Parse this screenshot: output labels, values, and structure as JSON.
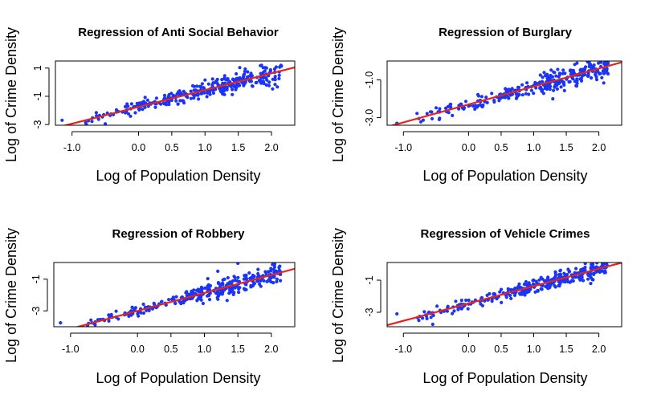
{
  "chart_data": [
    {
      "type": "scatter",
      "title": "Regression of Anti Social Behavior",
      "xlabel": "Log of Population Density",
      "ylabel": "Log of Crime Density",
      "xlim": [
        -1.25,
        2.35
      ],
      "ylim": [
        -3.05,
        1.5
      ],
      "xticks": [
        -1.0,
        0.0,
        0.5,
        1.0,
        1.5,
        2.0
      ],
      "xtick_labels": [
        "-1.0",
        "0.0",
        "0.5",
        "1.0",
        "1.5",
        "2.0"
      ],
      "yticks": [
        -3,
        -1,
        1
      ],
      "ytick_labels": [
        "-3",
        "-1",
        "1"
      ],
      "regression": {
        "slope": 1.19,
        "intercept": -1.75
      },
      "scatter_spread": 0.35,
      "outliers": [
        [
          -1.15,
          -2.7
        ],
        [
          -0.5,
          -2.95
        ],
        [
          1.0,
          0.15
        ],
        [
          1.85,
          1.2
        ]
      ],
      "point_count": 320,
      "point_color": "#1a35f5",
      "line_color": "#e8231a"
    },
    {
      "type": "scatter",
      "title": "Regression of Burglary",
      "xlabel": "Log of Population Density",
      "ylabel": "Log of Crime Density",
      "xlim": [
        -1.25,
        2.35
      ],
      "ylim": [
        -3.4,
        0.0
      ],
      "xticks": [
        -1.0,
        0.0,
        0.5,
        1.0,
        1.5,
        2.0
      ],
      "xtick_labels": [
        "-1.0",
        "0.0",
        "0.5",
        "1.0",
        "1.5",
        "2.0"
      ],
      "yticks": [
        -3.0,
        -1.0
      ],
      "ytick_labels": [
        "-3.0",
        "-1.0"
      ],
      "regression": {
        "slope": 0.95,
        "intercept": -2.3
      },
      "scatter_spread": 0.3,
      "outliers": [
        [
          -1.1,
          -3.3
        ],
        [
          -0.45,
          -3.1
        ],
        [
          1.85,
          -0.05
        ],
        [
          2.1,
          -0.5
        ]
      ],
      "point_count": 320,
      "point_color": "#1a35f5",
      "line_color": "#e8231a"
    },
    {
      "type": "scatter",
      "title": "Regression of Robbery",
      "xlabel": "Log of Population Density",
      "ylabel": "Log of Crime Density",
      "xlim": [
        -1.25,
        2.35
      ],
      "ylim": [
        -4.0,
        0.05
      ],
      "xticks": [
        -1.0,
        0.0,
        0.5,
        1.0,
        1.5,
        2.0
      ],
      "xtick_labels": [
        "-1.0",
        "0.0",
        "0.5",
        "1.0",
        "1.5",
        "2.0"
      ],
      "yticks": [
        -3,
        -1
      ],
      "ytick_labels": [
        "-3",
        "-1"
      ],
      "regression": {
        "slope": 1.13,
        "intercept": -3.0
      },
      "scatter_spread": 0.3,
      "outliers": [
        [
          -1.15,
          -3.75
        ],
        [
          1.5,
          0.0
        ],
        [
          2.05,
          -0.05
        ],
        [
          1.2,
          -0.5
        ]
      ],
      "point_count": 320,
      "point_color": "#1a35f5",
      "line_color": "#e8231a"
    },
    {
      "type": "scatter",
      "title": "Regression of Vehicle Crimes",
      "xlabel": "Log of Population Density",
      "ylabel": "Log of Crime Density",
      "xlim": [
        -1.25,
        2.35
      ],
      "ylim": [
        -3.9,
        0.1
      ],
      "xticks": [
        -1.0,
        0.0,
        0.5,
        1.0,
        1.5,
        2.0
      ],
      "xtick_labels": [
        "-1.0",
        "0.0",
        "0.5",
        "1.0",
        "1.5",
        "2.0"
      ],
      "yticks": [
        -3,
        -1
      ],
      "ytick_labels": [
        "-3",
        "-1"
      ],
      "regression": {
        "slope": 1.08,
        "intercept": -2.45
      },
      "scatter_spread": 0.3,
      "outliers": [
        [
          -1.1,
          -3.1
        ],
        [
          -0.55,
          -3.75
        ],
        [
          2.1,
          0.05
        ],
        [
          1.0,
          -1.0
        ]
      ],
      "point_count": 320,
      "point_color": "#1a35f5",
      "line_color": "#e8231a"
    }
  ]
}
